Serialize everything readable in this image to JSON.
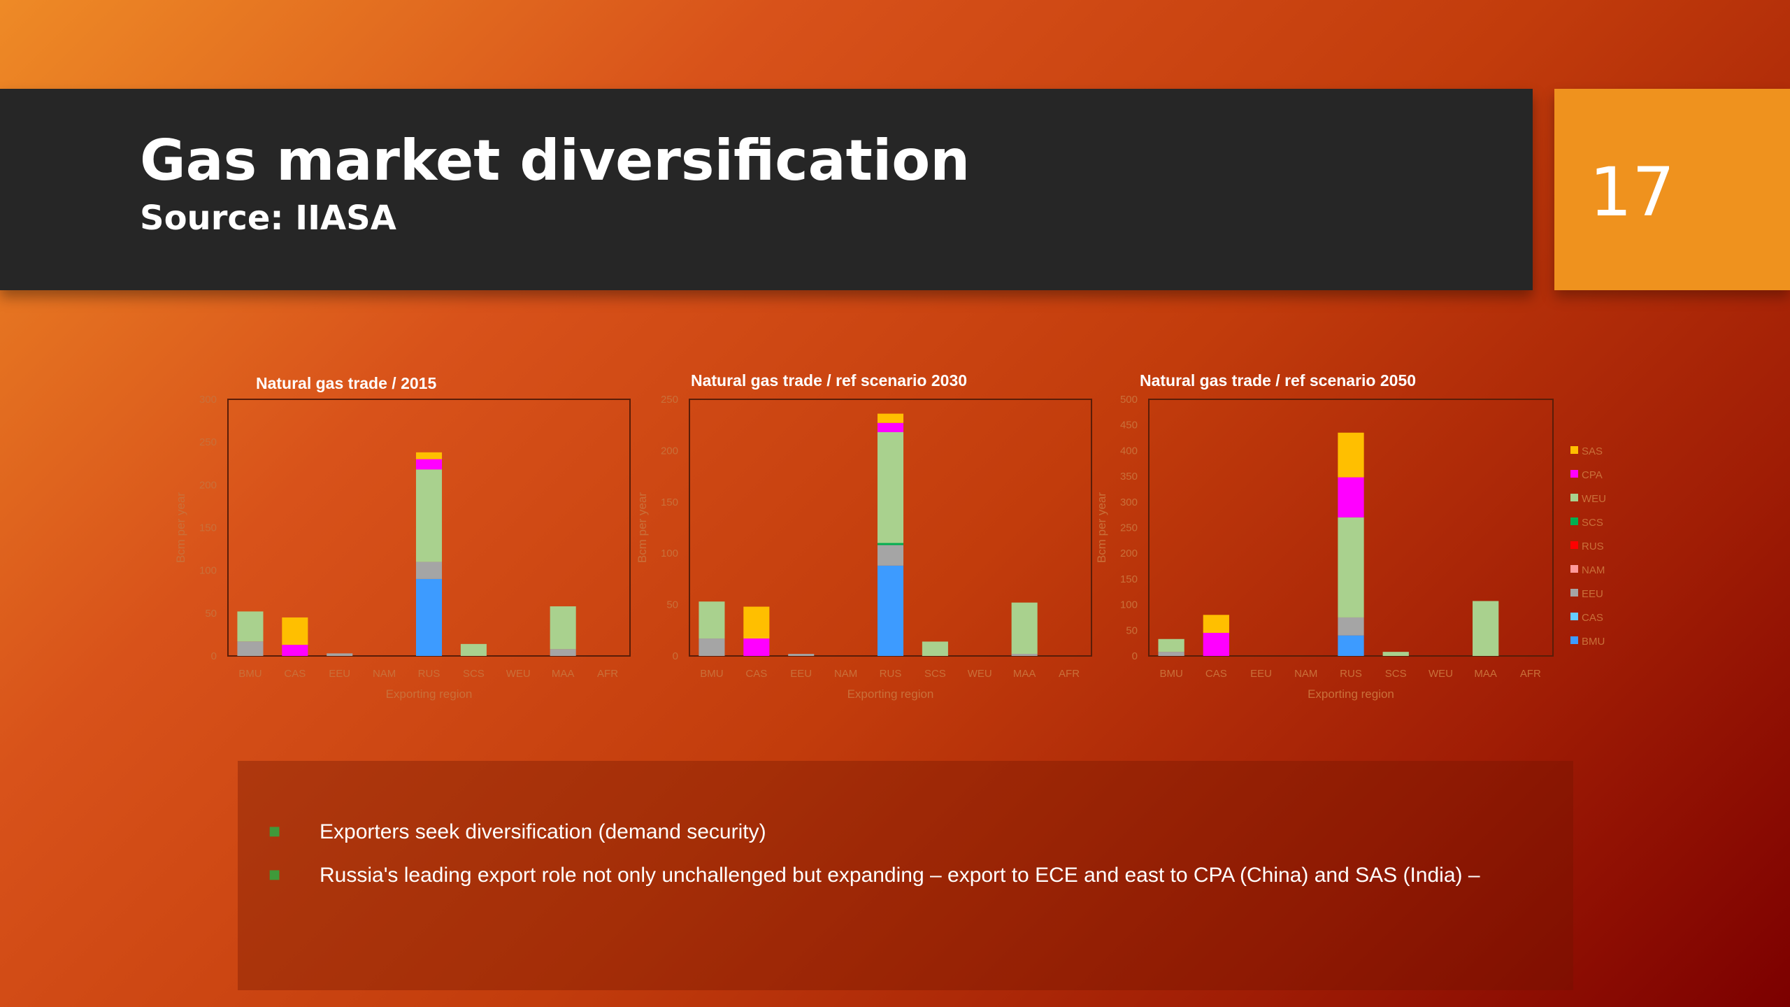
{
  "slide": {
    "title": "Gas market diversification",
    "subtitle": "Source: IIASA",
    "number": "17"
  },
  "bullets": [
    "Exporters seek diversification (demand security)",
    "Russia's leading export role not only unchallenged but expanding – export to ECE and east to CPA (China) and SAS (India) –"
  ],
  "colors": {
    "background_start": "#ee8a26",
    "background_end": "#7c0000",
    "title_band": "#262626",
    "number_box": "#ef921e",
    "bullet_mark": "#3f9a3a"
  },
  "legend": [
    {
      "label": "SAS",
      "color": "#ffbf00"
    },
    {
      "label": "CPA",
      "color": "#ff00ff"
    },
    {
      "label": "WEU",
      "color": "#a9d18e"
    },
    {
      "label": "SCS",
      "color": "#00b050"
    },
    {
      "label": "RUS",
      "color": "#ff0000"
    },
    {
      "label": "NAM",
      "color": "#ff9999"
    },
    {
      "label": "EEU",
      "color": "#a5a5a5"
    },
    {
      "label": "CAS",
      "color": "#66ccff"
    },
    {
      "label": "BMU",
      "color": "#3d9bff"
    }
  ],
  "chart_data": [
    {
      "type": "bar",
      "stacked": true,
      "title": "Natural gas trade / 2015",
      "xlabel": "Exporting region",
      "ylabel": "Bcm per year",
      "ylim": [
        0,
        300
      ],
      "yticks": [
        0,
        50,
        100,
        150,
        200,
        250,
        300
      ],
      "categories": [
        "BMU",
        "CAS",
        "EEU",
        "NAM",
        "RUS",
        "SCS",
        "WEU",
        "MAA",
        "AFR"
      ],
      "series": [
        {
          "name": "BMU",
          "values": [
            0,
            0,
            0,
            0,
            90,
            0,
            0,
            0,
            0
          ]
        },
        {
          "name": "CAS",
          "values": [
            0,
            0,
            0,
            0,
            0,
            0,
            0,
            0,
            0
          ]
        },
        {
          "name": "EEU",
          "values": [
            17,
            0,
            3,
            0,
            20,
            0,
            0,
            8,
            0
          ]
        },
        {
          "name": "NAM",
          "values": [
            0,
            0,
            0,
            0,
            0,
            0,
            0,
            0,
            0
          ]
        },
        {
          "name": "RUS",
          "values": [
            0,
            0,
            0,
            0,
            0,
            0,
            0,
            0,
            0
          ]
        },
        {
          "name": "SCS",
          "values": [
            0,
            0,
            0,
            0,
            0,
            0,
            0,
            0,
            0
          ]
        },
        {
          "name": "WEU",
          "values": [
            35,
            0,
            0,
            0,
            108,
            14,
            0,
            50,
            0
          ]
        },
        {
          "name": "CPA",
          "values": [
            0,
            13,
            0,
            0,
            12,
            0,
            0,
            0,
            0
          ]
        },
        {
          "name": "SAS",
          "values": [
            0,
            32,
            0,
            0,
            8,
            0,
            0,
            0,
            0
          ]
        }
      ]
    },
    {
      "type": "bar",
      "stacked": true,
      "title": "Natural gas trade / ref scenario 2030",
      "xlabel": "Exporting region",
      "ylabel": "Bcm per year",
      "ylim": [
        0,
        250
      ],
      "yticks": [
        0,
        50,
        100,
        150,
        200,
        250
      ],
      "categories": [
        "BMU",
        "CAS",
        "EEU",
        "NAM",
        "RUS",
        "SCS",
        "WEU",
        "MAA",
        "AFR"
      ],
      "series": [
        {
          "name": "BMU",
          "values": [
            0,
            0,
            0,
            0,
            88,
            0,
            0,
            0,
            0
          ]
        },
        {
          "name": "CAS",
          "values": [
            0,
            0,
            0,
            0,
            0,
            0,
            0,
            0,
            0
          ]
        },
        {
          "name": "EEU",
          "values": [
            17,
            0,
            2,
            0,
            20,
            0,
            0,
            2,
            0
          ]
        },
        {
          "name": "NAM",
          "values": [
            0,
            0,
            0,
            0,
            0,
            0,
            0,
            0,
            0
          ]
        },
        {
          "name": "RUS",
          "values": [
            0,
            0,
            0,
            0,
            0,
            0,
            0,
            0,
            0
          ]
        },
        {
          "name": "SCS",
          "values": [
            0,
            0,
            0,
            0,
            2,
            0,
            0,
            0,
            0
          ]
        },
        {
          "name": "WEU",
          "values": [
            36,
            0,
            0,
            0,
            108,
            14,
            0,
            50,
            0
          ]
        },
        {
          "name": "CPA",
          "values": [
            0,
            17,
            0,
            0,
            9,
            0,
            0,
            0,
            0
          ]
        },
        {
          "name": "SAS",
          "values": [
            0,
            31,
            0,
            0,
            9,
            0,
            0,
            0,
            0
          ]
        }
      ]
    },
    {
      "type": "bar",
      "stacked": true,
      "title": "Natural gas trade / ref scenario 2050",
      "xlabel": "Exporting region",
      "ylabel": "Bcm per year",
      "ylim": [
        0,
        500
      ],
      "yticks": [
        0,
        50,
        100,
        150,
        200,
        250,
        300,
        350,
        400,
        450,
        500
      ],
      "categories": [
        "BMU",
        "CAS",
        "EEU",
        "NAM",
        "RUS",
        "SCS",
        "WEU",
        "MAA",
        "AFR"
      ],
      "series": [
        {
          "name": "BMU",
          "values": [
            0,
            0,
            0,
            0,
            40,
            0,
            0,
            0,
            0
          ]
        },
        {
          "name": "CAS",
          "values": [
            0,
            0,
            0,
            0,
            0,
            0,
            0,
            0,
            0
          ]
        },
        {
          "name": "EEU",
          "values": [
            8,
            0,
            0,
            0,
            35,
            0,
            0,
            0,
            0
          ]
        },
        {
          "name": "NAM",
          "values": [
            0,
            0,
            0,
            0,
            0,
            0,
            0,
            0,
            0
          ]
        },
        {
          "name": "RUS",
          "values": [
            0,
            0,
            0,
            0,
            0,
            0,
            0,
            0,
            0
          ]
        },
        {
          "name": "SCS",
          "values": [
            0,
            0,
            0,
            0,
            0,
            0,
            0,
            0,
            0
          ]
        },
        {
          "name": "WEU",
          "values": [
            25,
            0,
            0,
            0,
            195,
            8,
            0,
            107,
            0
          ]
        },
        {
          "name": "CPA",
          "values": [
            0,
            45,
            0,
            0,
            78,
            0,
            0,
            0,
            0
          ]
        },
        {
          "name": "SAS",
          "values": [
            0,
            35,
            0,
            0,
            87,
            0,
            0,
            0,
            0
          ]
        }
      ]
    }
  ]
}
